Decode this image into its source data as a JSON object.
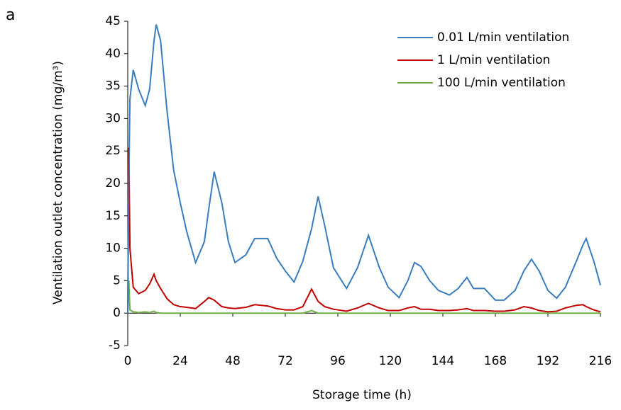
{
  "panel_label": "a",
  "chart_data": {
    "type": "line",
    "xlabel": "Storage time (h)",
    "ylabel": "Ventilation outlet concentration  (mg/m³)",
    "x": [
      0,
      0.5,
      1,
      2.5,
      5,
      8,
      10,
      12,
      13,
      15,
      18,
      21,
      24,
      27,
      31,
      35,
      37,
      39.5,
      43,
      46,
      49,
      54,
      58,
      64,
      68,
      72,
      76,
      80,
      84,
      87,
      90,
      94,
      100,
      105,
      110,
      115,
      119,
      124,
      128,
      131,
      134,
      138,
      142,
      147,
      151,
      155,
      158,
      163,
      168,
      172,
      177,
      181,
      184.5,
      188,
      192,
      196,
      200,
      205,
      208,
      209.5,
      213,
      216
    ],
    "series": [
      {
        "name": "0.01 L/min ventilation",
        "color": "#3a7dbf",
        "values": [
          0,
          20,
          33,
          37.5,
          34.5,
          32,
          34.5,
          42,
          44.5,
          42,
          31,
          22,
          17,
          12.5,
          7.8,
          11,
          16,
          21.8,
          17,
          11,
          7.8,
          9,
          11.5,
          11.5,
          8.5,
          6.5,
          4.8,
          8,
          13,
          18,
          13.5,
          7,
          3.8,
          7,
          12,
          7,
          4,
          2.4,
          5,
          7.8,
          7.2,
          5,
          3.5,
          2.8,
          3.8,
          5.5,
          3.8,
          3.8,
          2,
          2,
          3.5,
          6.5,
          8.3,
          6.5,
          3.5,
          2.3,
          4,
          8,
          10.5,
          11.5,
          8,
          4.3
        ]
      },
      {
        "name": "1 L/min ventilation",
        "color": "#c00000",
        "values": [
          0,
          25.5,
          10,
          4,
          3,
          3.5,
          4.5,
          6,
          5,
          3.8,
          2.2,
          1.3,
          1,
          0.9,
          0.7,
          1.8,
          2.4,
          2,
          1,
          0.8,
          0.7,
          0.9,
          1.3,
          1.1,
          0.7,
          0.5,
          0.5,
          1,
          3.7,
          1.8,
          1,
          0.6,
          0.3,
          0.8,
          1.5,
          0.8,
          0.4,
          0.4,
          0.8,
          1,
          0.6,
          0.6,
          0.4,
          0.4,
          0.5,
          0.7,
          0.4,
          0.4,
          0.3,
          0.3,
          0.5,
          1,
          0.8,
          0.4,
          0.2,
          0.3,
          0.8,
          1.2,
          1.3,
          1,
          0.5,
          0.2
        ]
      },
      {
        "name": "100 L/min ventilation",
        "color": "#70ad47",
        "values": [
          0,
          5,
          0.5,
          0.2,
          0.1,
          0.2,
          0.1,
          0.3,
          0.1,
          0,
          0,
          0,
          0,
          0,
          0,
          0,
          0,
          0,
          0,
          0,
          0,
          0,
          0,
          0,
          0,
          0,
          0,
          0,
          0.4,
          0,
          0,
          0,
          0,
          0,
          0,
          0,
          0,
          0,
          0,
          0,
          0,
          0,
          0,
          0,
          0,
          0,
          0,
          0,
          0,
          0,
          0,
          0,
          0,
          0,
          0,
          0,
          0,
          0,
          0,
          0,
          0,
          0
        ]
      }
    ],
    "xlim": [
      0,
      216
    ],
    "xticks": [
      0,
      24,
      48,
      72,
      96,
      120,
      144,
      168,
      192,
      216
    ],
    "ylim": [
      -5,
      45
    ],
    "yticks": [
      -5,
      0,
      5,
      10,
      15,
      20,
      25,
      30,
      35,
      40,
      45
    ],
    "legend": "upper right"
  }
}
